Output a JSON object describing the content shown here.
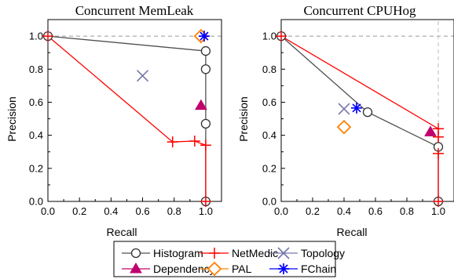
{
  "legend": {
    "entries": [
      {
        "key": "histogram",
        "label": "Histogram",
        "color": "#505050",
        "marker": "circle"
      },
      {
        "key": "netmedic",
        "label": "NetMedic",
        "color": "#ff0000",
        "marker": "plus"
      },
      {
        "key": "topology",
        "label": "Topology",
        "color": "#7777aa",
        "marker": "x"
      },
      {
        "key": "dependency",
        "label": "Dependency",
        "color": "#c0006e",
        "marker": "triangle"
      },
      {
        "key": "pal",
        "label": "PAL",
        "color": "#ff8000",
        "marker": "diamond"
      },
      {
        "key": "fchain",
        "label": "FChain",
        "color": "#0000ff",
        "marker": "asterisk"
      }
    ]
  },
  "chart_data": [
    {
      "type": "line",
      "title": "Concurrent MemLeak",
      "xlabel": "Recall",
      "ylabel": "Precision",
      "xlim": [
        0,
        1.1
      ],
      "ylim": [
        0,
        1.1
      ],
      "xticks": [
        "0.0",
        "0.2",
        "0.4",
        "0.6",
        "0.8",
        "1.0"
      ],
      "yticks": [
        "0.0",
        "0.2",
        "0.4",
        "0.6",
        "0.8",
        "1.0"
      ],
      "reference_lines": {
        "y": 1.0
      },
      "series": [
        {
          "key": "histogram",
          "x": [
            0,
            1.0,
            1.0,
            1.0,
            1.0
          ],
          "y": [
            1.0,
            0.91,
            0.8,
            0.47,
            0.0
          ],
          "connected": true
        },
        {
          "key": "netmedic",
          "x": [
            0,
            0.79,
            0.93,
            1.0,
            1.0
          ],
          "y": [
            1.0,
            0.36,
            0.365,
            0.34,
            0.0
          ],
          "connected": true
        },
        {
          "key": "topology",
          "x": [
            0.6
          ],
          "y": [
            0.76
          ],
          "connected": false
        },
        {
          "key": "dependency",
          "x": [
            0.97
          ],
          "y": [
            0.58
          ],
          "connected": false
        },
        {
          "key": "pal",
          "x": [
            0.97
          ],
          "y": [
            1.0
          ],
          "connected": false
        },
        {
          "key": "fchain",
          "x": [
            0.99
          ],
          "y": [
            1.0
          ],
          "connected": false
        }
      ]
    },
    {
      "type": "line",
      "title": "Concurrent CPUHog",
      "xlabel": "Recall",
      "ylabel": "Precision",
      "xlim": [
        0,
        1.1
      ],
      "ylim": [
        0,
        1.1
      ],
      "xticks": [
        "0.0",
        "0.2",
        "0.4",
        "0.6",
        "0.8",
        "1.0"
      ],
      "yticks": [
        "0.0",
        "0.2",
        "0.4",
        "0.6",
        "0.8",
        "1.0"
      ],
      "reference_lines": {
        "y": 1.0,
        "x": 1.0
      },
      "series": [
        {
          "key": "histogram",
          "x": [
            0,
            0.55,
            1.0,
            1.0
          ],
          "y": [
            1.0,
            0.54,
            0.33,
            0.0
          ],
          "connected": true
        },
        {
          "key": "netmedic",
          "x": [
            0,
            1.0,
            1.0,
            1.0,
            1.0
          ],
          "y": [
            1.0,
            0.44,
            0.39,
            0.29,
            0.0
          ],
          "connected": true
        },
        {
          "key": "topology",
          "x": [
            0.4
          ],
          "y": [
            0.56
          ],
          "connected": false
        },
        {
          "key": "dependency",
          "x": [
            0.95
          ],
          "y": [
            0.42
          ],
          "connected": false
        },
        {
          "key": "pal",
          "x": [
            0.4
          ],
          "y": [
            0.45
          ],
          "connected": false
        },
        {
          "key": "fchain",
          "x": [
            0.48
          ],
          "y": [
            0.565
          ],
          "connected": false
        }
      ]
    }
  ]
}
